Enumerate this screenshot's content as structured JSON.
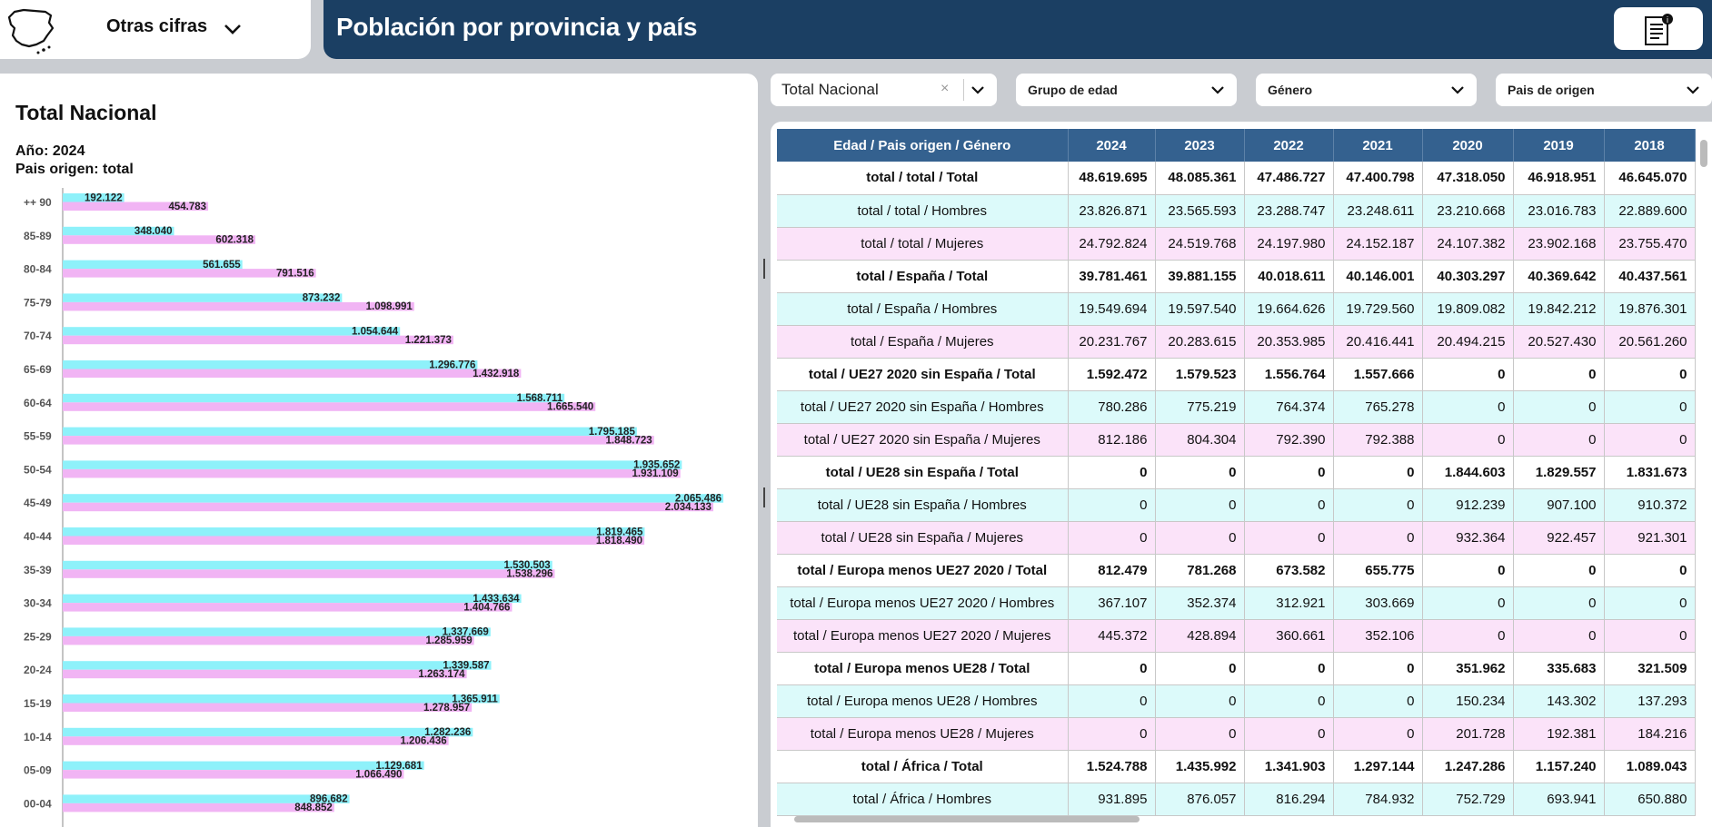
{
  "top_left": {
    "selector_label": "Otras cifras"
  },
  "header": {
    "title": "Población por provincia y país"
  },
  "chart": {
    "title": "Total Nacional",
    "subtitle_year": "Año: 2024",
    "subtitle_origin": "Pais origen: total",
    "colors": {
      "men": "#8ef1fa",
      "women": "#f1b4f4"
    }
  },
  "chart_data": {
    "type": "bar",
    "orientation": "horizontal",
    "categories": [
      "++ 90",
      "85-89",
      "80-84",
      "75-79",
      "70-74",
      "65-69",
      "60-64",
      "55-59",
      "50-54",
      "45-49",
      "40-44",
      "35-39",
      "30-34",
      "25-29",
      "20-24",
      "15-19",
      "10-14",
      "05-09",
      "00-04"
    ],
    "series": [
      {
        "color": "#8ef1fa",
        "values": [
          192122,
          348040,
          561655,
          873232,
          1054644,
          1296776,
          1568711,
          1795185,
          1935652,
          2065486,
          1819465,
          1530503,
          1433634,
          1337669,
          1339587,
          1365911,
          1282236,
          1129681,
          896682
        ],
        "labels": [
          "192.122",
          "348.040",
          "561.655",
          "873.232",
          "1.054.644",
          "1.296.776",
          "1.568.711",
          "1.795.185",
          "1.935.652",
          "2.065.486",
          "1.819.465",
          "1.530.503",
          "1.433.634",
          "1.337.669",
          "1.339.587",
          "1.365.911",
          "1.282.236",
          "1.129.681",
          "896.682"
        ]
      },
      {
        "color": "#f1b4f4",
        "values": [
          454783,
          602318,
          791516,
          1098991,
          1221373,
          1432918,
          1665540,
          1848723,
          1931109,
          2034133,
          1818490,
          1538296,
          1404766,
          1285959,
          1263174,
          1278957,
          1206436,
          1066490,
          848852
        ],
        "labels": [
          "454.783",
          "602.318",
          "791.516",
          "1.098.991",
          "1.221.373",
          "1.432.918",
          "1.665.540",
          "1.848.723",
          "1.931.109",
          "2.034.133",
          "1.818.490",
          "1.538.296",
          "1.404.766",
          "1.285.959",
          "1.263.174",
          "1.278.957",
          "1.206.436",
          "1.066.490",
          "848.852"
        ]
      }
    ],
    "xlim": [
      0,
      2065486
    ]
  },
  "filters": {
    "main": "Total Nacional",
    "clear_glyph": "×",
    "edad": "Grupo de edad",
    "genero": "Género",
    "pais": "Pais de origen"
  },
  "table": {
    "headers": [
      "Edad / Pais origen / Género",
      "2024",
      "2023",
      "2022",
      "2021",
      "2020",
      "2019",
      "2018"
    ],
    "rows": [
      {
        "type": "bold",
        "cells": [
          "total / total / Total",
          "48.619.695",
          "48.085.361",
          "47.486.727",
          "47.400.798",
          "47.318.050",
          "46.918.951",
          "46.645.070"
        ]
      },
      {
        "type": "men",
        "cells": [
          "total / total / Hombres",
          "23.826.871",
          "23.565.593",
          "23.288.747",
          "23.248.611",
          "23.210.668",
          "23.016.783",
          "22.889.600"
        ]
      },
      {
        "type": "women",
        "cells": [
          "total / total / Mujeres",
          "24.792.824",
          "24.519.768",
          "24.197.980",
          "24.152.187",
          "24.107.382",
          "23.902.168",
          "23.755.470"
        ]
      },
      {
        "type": "bold",
        "cells": [
          "total / España / Total",
          "39.781.461",
          "39.881.155",
          "40.018.611",
          "40.146.001",
          "40.303.297",
          "40.369.642",
          "40.437.561"
        ]
      },
      {
        "type": "men",
        "cells": [
          "total / España / Hombres",
          "19.549.694",
          "19.597.540",
          "19.664.626",
          "19.729.560",
          "19.809.082",
          "19.842.212",
          "19.876.301"
        ]
      },
      {
        "type": "women",
        "cells": [
          "total / España / Mujeres",
          "20.231.767",
          "20.283.615",
          "20.353.985",
          "20.416.441",
          "20.494.215",
          "20.527.430",
          "20.561.260"
        ]
      },
      {
        "type": "bold",
        "cells": [
          "total / UE27 2020 sin España / Total",
          "1.592.472",
          "1.579.523",
          "1.556.764",
          "1.557.666",
          "0",
          "0",
          "0"
        ]
      },
      {
        "type": "men",
        "cells": [
          "total / UE27 2020 sin España / Hombres",
          "780.286",
          "775.219",
          "764.374",
          "765.278",
          "0",
          "0",
          "0"
        ]
      },
      {
        "type": "women",
        "cells": [
          "total / UE27 2020 sin España / Mujeres",
          "812.186",
          "804.304",
          "792.390",
          "792.388",
          "0",
          "0",
          "0"
        ]
      },
      {
        "type": "bold",
        "cells": [
          "total / UE28 sin España / Total",
          "0",
          "0",
          "0",
          "0",
          "1.844.603",
          "1.829.557",
          "1.831.673"
        ]
      },
      {
        "type": "men",
        "cells": [
          "total / UE28 sin España / Hombres",
          "0",
          "0",
          "0",
          "0",
          "912.239",
          "907.100",
          "910.372"
        ]
      },
      {
        "type": "women",
        "cells": [
          "total / UE28 sin España / Mujeres",
          "0",
          "0",
          "0",
          "0",
          "932.364",
          "922.457",
          "921.301"
        ]
      },
      {
        "type": "bold",
        "cells": [
          "total / Europa menos UE27 2020 / Total",
          "812.479",
          "781.268",
          "673.582",
          "655.775",
          "0",
          "0",
          "0"
        ]
      },
      {
        "type": "men",
        "cells": [
          "total / Europa menos UE27 2020 / Hombres",
          "367.107",
          "352.374",
          "312.921",
          "303.669",
          "0",
          "0",
          "0"
        ]
      },
      {
        "type": "women",
        "cells": [
          "total / Europa menos UE27 2020 / Mujeres",
          "445.372",
          "428.894",
          "360.661",
          "352.106",
          "0",
          "0",
          "0"
        ]
      },
      {
        "type": "bold",
        "cells": [
          "total / Europa menos UE28 / Total",
          "0",
          "0",
          "0",
          "0",
          "351.962",
          "335.683",
          "321.509"
        ]
      },
      {
        "type": "men",
        "cells": [
          "total / Europa menos UE28 / Hombres",
          "0",
          "0",
          "0",
          "0",
          "150.234",
          "143.302",
          "137.293"
        ]
      },
      {
        "type": "women",
        "cells": [
          "total / Europa menos UE28 / Mujeres",
          "0",
          "0",
          "0",
          "0",
          "201.728",
          "192.381",
          "184.216"
        ]
      },
      {
        "type": "bold",
        "cells": [
          "total / África / Total",
          "1.524.788",
          "1.435.992",
          "1.341.903",
          "1.297.144",
          "1.247.286",
          "1.157.240",
          "1.089.043"
        ]
      },
      {
        "type": "men",
        "cells": [
          "total / África / Hombres",
          "931.895",
          "876.057",
          "816.294",
          "784.932",
          "752.729",
          "693.941",
          "650.880"
        ]
      }
    ]
  }
}
